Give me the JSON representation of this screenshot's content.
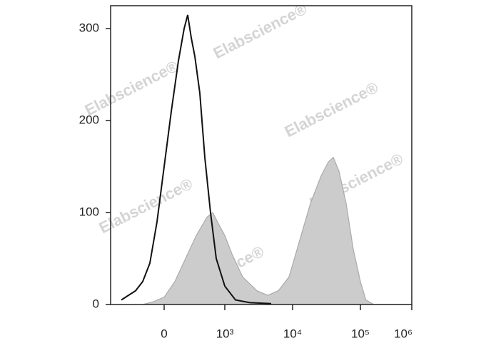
{
  "chart_data": {
    "type": "histogram-overlay",
    "watermark": "Elabscience®",
    "xscale": "biexponential",
    "xlim": [
      -880,
      1000000
    ],
    "xticks": [
      0,
      {
        "value": 1000,
        "label": "10³"
      },
      {
        "value": 10000,
        "label": "10⁴"
      },
      {
        "value": 100000,
        "label": "10⁵"
      },
      {
        "value": 1000000,
        "label": "10⁶"
      }
    ],
    "ylim": [
      0,
      325
    ],
    "yticks": [
      0,
      100,
      200,
      300
    ],
    "series": [
      {
        "color": "#aaaaaa",
        "fill": "#cccccc",
        "x": [
          -353,
          -176,
          0,
          176,
          353,
          529,
          706,
          800,
          918,
          1000,
          1274,
          1832,
          2976,
          4283,
          6152,
          8855,
          12744,
          18330,
          26360,
          33590,
          39810,
          48300,
          61520,
          78500,
          100000,
          127400,
          183300,
          1000000
        ],
        "values": [
          0,
          3,
          8,
          25,
          50,
          75,
          95,
          100,
          85,
          75,
          55,
          30,
          15,
          10,
          15,
          30,
          70,
          110,
          140,
          155,
          160,
          145,
          110,
          60,
          25,
          5,
          0,
          0
        ]
      },
      {
        "color": "#111111",
        "fill": "none",
        "x": [
          -706,
          -588,
          -471,
          -353,
          -235,
          -118,
          0,
          118,
          235,
          329,
          388,
          447,
          506,
          588,
          671,
          765,
          859,
          1000,
          1438,
          2336,
          4834
        ],
        "values": [
          5,
          10,
          15,
          25,
          45,
          90,
          150,
          210,
          265,
          300,
          315,
          290,
          270,
          230,
          160,
          100,
          50,
          20,
          5,
          2,
          1
        ]
      }
    ]
  }
}
